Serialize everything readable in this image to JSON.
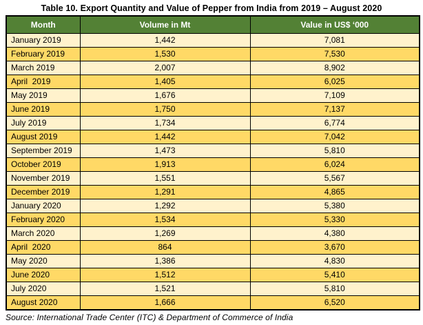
{
  "title": "Table 10. Export Quantity and Value of Pepper from India from 2019 – August 2020",
  "source": "Source: International Trade Center (ITC) & Department of Commerce of India",
  "colors": {
    "header_bg": "#538135",
    "header_text": "#FFFFFF",
    "row_light": "#FFF2CC",
    "row_dark": "#FFD966",
    "border": "#000000"
  },
  "chart_data": {
    "type": "table",
    "columns": [
      "Month",
      "Volume in Mt",
      "Value in US$ ‘000"
    ],
    "rows": [
      [
        "January 2019",
        "1,442",
        "7,081"
      ],
      [
        "February 2019",
        "1,530",
        "7,530"
      ],
      [
        "March 2019",
        "2,007",
        "8,902"
      ],
      [
        "April  2019",
        "1,405",
        "6,025"
      ],
      [
        "May 2019",
        "1,676",
        "7,109"
      ],
      [
        "June 2019",
        "1,750",
        "7,137"
      ],
      [
        "July 2019",
        "1,734",
        "6,774"
      ],
      [
        "August 2019",
        "1,442",
        "7,042"
      ],
      [
        "September 2019",
        "1,473",
        "5,810"
      ],
      [
        "October 2019",
        "1,913",
        "6,024"
      ],
      [
        "November 2019",
        "1,551",
        "5,567"
      ],
      [
        "December 2019",
        "1,291",
        "4,865"
      ],
      [
        "January 2020",
        "1,292",
        "5,380"
      ],
      [
        "February 2020",
        "1,534",
        "5,330"
      ],
      [
        "March 2020",
        "1,269",
        "4,380"
      ],
      [
        "April  2020",
        "864",
        "3,670"
      ],
      [
        "May 2020",
        "1,386",
        "4,830"
      ],
      [
        "June 2020",
        "1,512",
        "5,410"
      ],
      [
        "July 2020",
        "1,521",
        "5,810"
      ],
      [
        "August 2020",
        "1,666",
        "6,520"
      ]
    ]
  }
}
